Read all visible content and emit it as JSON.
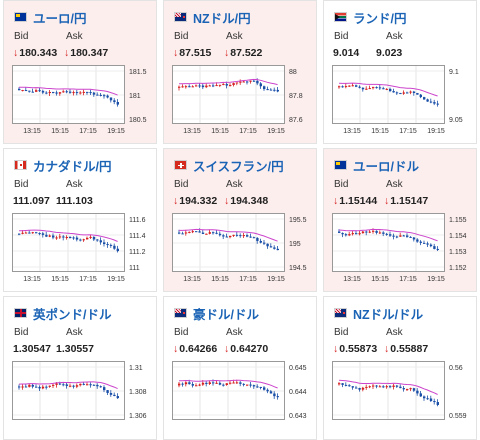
{
  "cards": [
    {
      "name": "eur-jpy",
      "title": "ユーロ/円",
      "flag": "eu",
      "state": "down",
      "bid": "180.343",
      "ask": "180.347",
      "bid_arrow": "↓",
      "ask_arrow": "↓",
      "bid_label": "Bid",
      "ask_label": "Ask",
      "chart": {
        "y_ticks": [
          "181.5",
          "181",
          "180.5"
        ],
        "x_ticks": [
          "13:15",
          "15:15",
          "17:15",
          "19:15"
        ]
      }
    },
    {
      "name": "nzd-jpy",
      "title": "NZドル/円",
      "flag": "nz",
      "state": "down",
      "bid": "87.515",
      "ask": "87.522",
      "bid_arrow": "↓",
      "ask_arrow": "↓",
      "bid_label": "Bid",
      "ask_label": "Ask",
      "chart": {
        "y_ticks": [
          "88",
          "87.8",
          "87.6"
        ],
        "x_ticks": [
          "13:15",
          "15:15",
          "17:15",
          "19:15"
        ]
      }
    },
    {
      "name": "zar-jpy",
      "title": "ランド/円",
      "flag": "za",
      "state": "flat",
      "bid": "9.014",
      "ask": "9.023",
      "bid_arrow": "",
      "ask_arrow": "",
      "bid_label": "Bid",
      "ask_label": "Ask",
      "chart": {
        "y_ticks": [
          "9.1",
          "9.05"
        ],
        "x_ticks": [
          "13:15",
          "15:15",
          "17:15",
          "19:15"
        ]
      }
    },
    {
      "name": "cad-jpy",
      "title": "カナダドル/円",
      "flag": "ca",
      "state": "flat",
      "bid": "111.097",
      "ask": "111.103",
      "bid_arrow": "",
      "ask_arrow": "",
      "bid_label": "Bid",
      "ask_label": "Ask",
      "chart": {
        "y_ticks": [
          "111.6",
          "111.4",
          "111.2",
          "111"
        ],
        "x_ticks": [
          "13:15",
          "15:15",
          "17:15",
          "19:15"
        ]
      }
    },
    {
      "name": "chf-jpy",
      "title": "スイスフラン/円",
      "flag": "ch",
      "state": "down",
      "bid": "194.332",
      "ask": "194.348",
      "bid_arrow": "↓",
      "ask_arrow": "↓",
      "bid_label": "Bid",
      "ask_label": "Ask",
      "chart": {
        "y_ticks": [
          "195.5",
          "195",
          "194.5"
        ],
        "x_ticks": [
          "13:15",
          "15:15",
          "17:15",
          "19:15"
        ]
      }
    },
    {
      "name": "eur-usd",
      "title": "ユーロ/ドル",
      "flag": "eu",
      "state": "down",
      "bid": "1.15144",
      "ask": "1.15147",
      "bid_arrow": "↓",
      "ask_arrow": "↓",
      "bid_label": "Bid",
      "ask_label": "Ask",
      "chart": {
        "y_ticks": [
          "1.155",
          "1.154",
          "1.153",
          "1.152"
        ],
        "x_ticks": [
          "13:15",
          "15:15",
          "17:15",
          "19:15"
        ]
      }
    },
    {
      "name": "gbp-usd",
      "title": "英ポンド/ドル",
      "flag": "gb",
      "state": "flat",
      "bid": "1.30547",
      "ask": "1.30557",
      "bid_arrow": "",
      "ask_arrow": "",
      "bid_label": "Bid",
      "ask_label": "Ask",
      "chart": {
        "y_ticks": [
          "1.31",
          "1.308",
          "1.306"
        ],
        "x_ticks": []
      }
    },
    {
      "name": "aud-usd",
      "title": "豪ドル/ドル",
      "flag": "au",
      "state": "flat",
      "bid": "0.64266",
      "ask": "0.64270",
      "bid_arrow": "↓",
      "ask_arrow": "↓",
      "bid_label": "Bid",
      "ask_label": "Ask",
      "chart": {
        "y_ticks": [
          "0.645",
          "0.644",
          "0.643"
        ],
        "x_ticks": []
      }
    },
    {
      "name": "nzd-usd",
      "title": "NZドル/ドル",
      "flag": "nz",
      "state": "flat",
      "bid": "0.55873",
      "ask": "0.55887",
      "bid_arrow": "↓",
      "ask_arrow": "↓",
      "bid_label": "Bid",
      "ask_label": "Ask",
      "chart": {
        "y_ticks": [
          "0.56",
          "0.559"
        ],
        "x_ticks": []
      }
    }
  ],
  "colors": {
    "title": "#1a63b5",
    "down_arrow": "#d62020",
    "candle_up": "#d62020",
    "candle_down": "#1a4fa8",
    "ma": "#cc44cc",
    "card_down_bg": "#fdeeee"
  }
}
